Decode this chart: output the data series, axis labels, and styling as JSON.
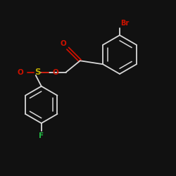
{
  "background_color": "#111111",
  "bond_color": "#d8d8d8",
  "heteroatom_color_O": "#cc1100",
  "heteroatom_color_S": "#bbaa00",
  "heteroatom_color_Br": "#cc1100",
  "heteroatom_color_F": "#22bb44",
  "label_Br": "Br",
  "label_F": "F",
  "label_O": "O",
  "label_S": "S",
  "figsize": [
    2.5,
    2.5
  ],
  "dpi": 100,
  "xlim": [
    0,
    10
  ],
  "ylim": [
    0,
    10
  ]
}
